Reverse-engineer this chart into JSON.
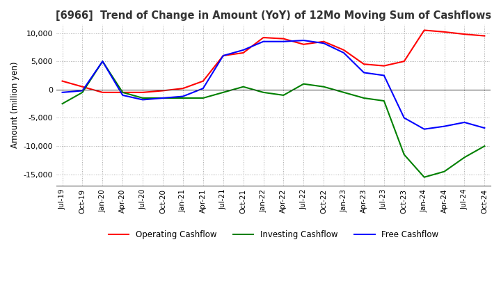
{
  "title": "[6966]  Trend of Change in Amount (YoY) of 12Mo Moving Sum of Cashflows",
  "ylabel": "Amount (million yen)",
  "x_labels": [
    "Jul-19",
    "Oct-19",
    "Jan-20",
    "Apr-20",
    "Jul-20",
    "Oct-20",
    "Jan-21",
    "Apr-21",
    "Jul-21",
    "Oct-21",
    "Jan-22",
    "Apr-22",
    "Jul-22",
    "Oct-22",
    "Jan-23",
    "Apr-23",
    "Jul-23",
    "Oct-23",
    "Jan-24",
    "Apr-24",
    "Jul-24",
    "Oct-24"
  ],
  "operating": [
    1500,
    500,
    -500,
    -500,
    -500,
    -200,
    200,
    1500,
    6000,
    6500,
    9200,
    9000,
    8000,
    8500,
    7000,
    4500,
    4200,
    5000,
    10500,
    10200,
    9800,
    9500
  ],
  "investing": [
    -2500,
    -500,
    5000,
    -500,
    -1500,
    -1500,
    -1500,
    -1500,
    -500,
    500,
    -500,
    -1000,
    1000,
    500,
    -500,
    -1500,
    -2000,
    -11500,
    -15500,
    -14500,
    -12000,
    -10000
  ],
  "free": [
    -500,
    -200,
    5000,
    -1000,
    -1800,
    -1500,
    -1200,
    200,
    6000,
    7000,
    8500,
    8500,
    8700,
    8200,
    6500,
    3000,
    2500,
    -5000,
    -7000,
    -6500,
    -5800,
    -6800
  ],
  "ylim": [
    -17000,
    11500
  ],
  "yticks": [
    -15000,
    -10000,
    -5000,
    0,
    5000,
    10000
  ],
  "colors": {
    "operating": "#ff0000",
    "investing": "#008000",
    "free": "#0000ff"
  },
  "legend_labels": [
    "Operating Cashflow",
    "Investing Cashflow",
    "Free Cashflow"
  ],
  "background_color": "#ffffff",
  "grid_color": "#aaaaaa"
}
